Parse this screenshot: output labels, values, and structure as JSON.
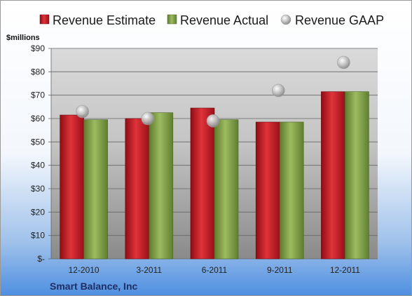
{
  "chart_data": {
    "type": "bar",
    "unit_label": "$millions",
    "company": "Smart Balance, Inc",
    "categories": [
      "12-2010",
      "3-2011",
      "6-2011",
      "9-2011",
      "12-2011"
    ],
    "y_ticks": [
      "$-",
      "$10",
      "$20",
      "$30",
      "$40",
      "$50",
      "$60",
      "$70",
      "$80",
      "$90"
    ],
    "ylim": [
      0,
      90
    ],
    "grid": true,
    "legend_position": "top",
    "series": [
      {
        "name": "Revenue Estimate",
        "kind": "bar",
        "color": "#c0151f",
        "values": [
          61.5,
          60,
          64.5,
          58.5,
          71.5
        ]
      },
      {
        "name": "Revenue Actual",
        "kind": "bar",
        "color": "#7f9f45",
        "values": [
          59.5,
          62.5,
          59.5,
          58.5,
          71.5
        ]
      },
      {
        "name": "Revenue GAAP",
        "kind": "marker",
        "color": "#b9b9b9",
        "values": [
          63,
          60,
          59,
          72,
          84
        ]
      }
    ]
  }
}
